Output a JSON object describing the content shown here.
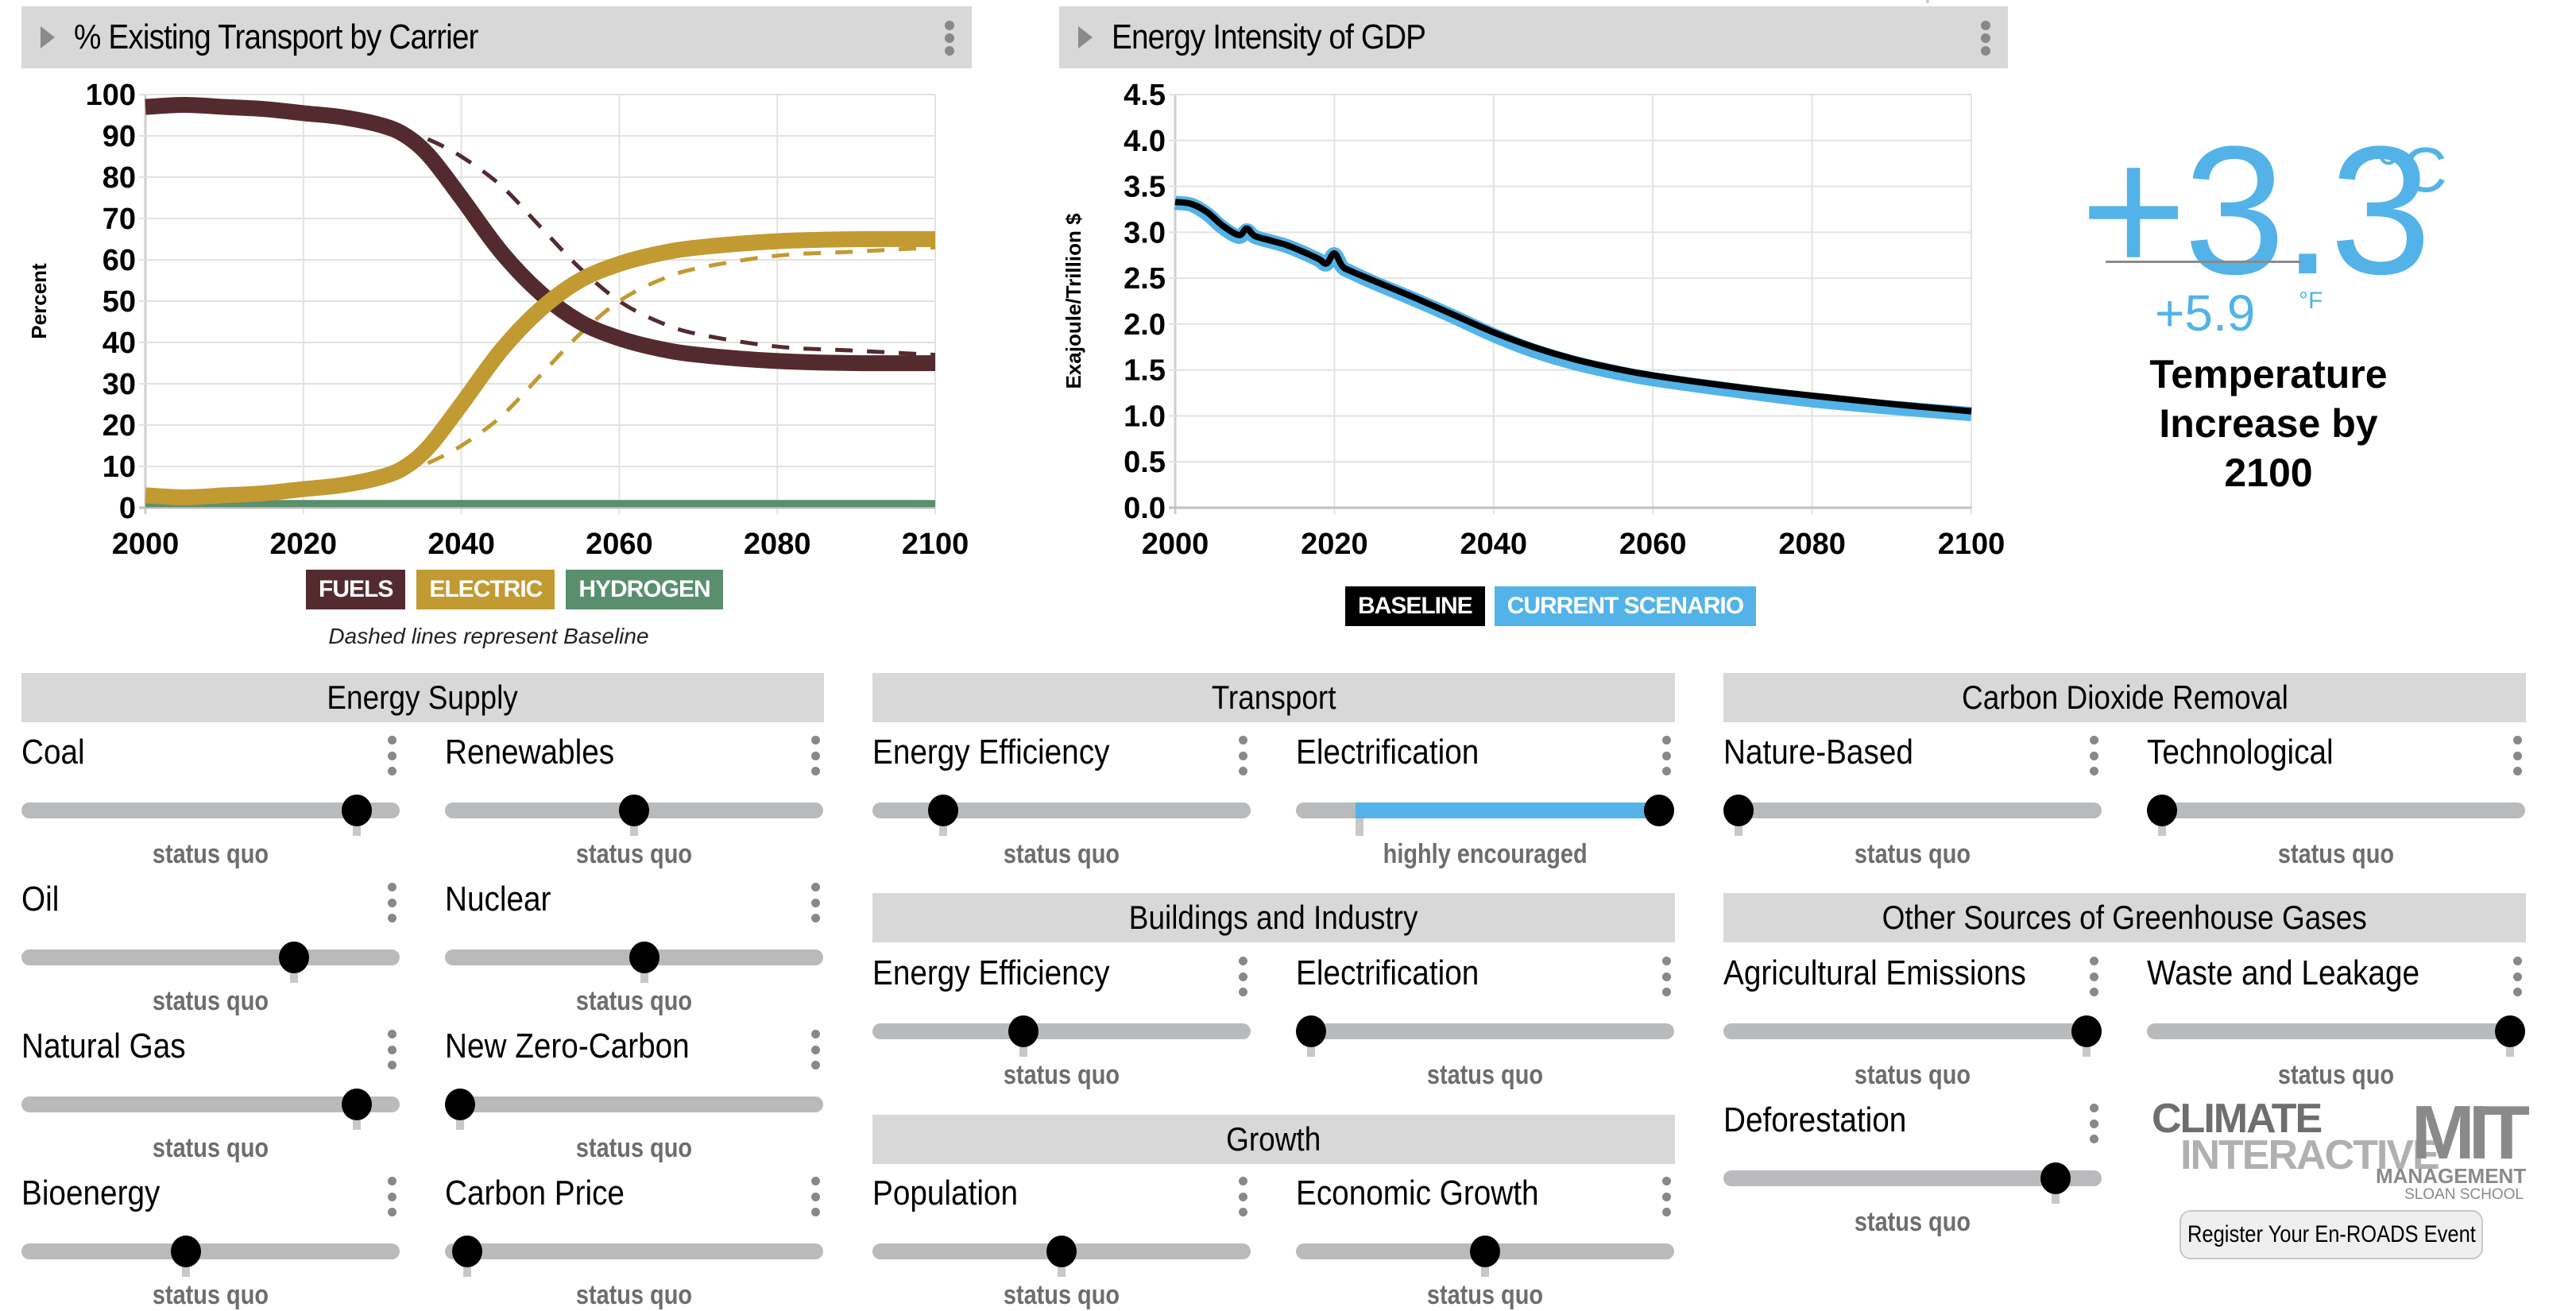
{
  "transport_chart": {
    "title": "% Existing Transport by Carrier",
    "ylabel": "Percent",
    "legend": [
      {
        "label": "FUELS",
        "color": "#532b2e"
      },
      {
        "label": "ELECTRIC",
        "color": "#c19a32"
      },
      {
        "label": "HYDROGEN",
        "color": "#5a8f6e"
      }
    ],
    "caption": "Dashed lines represent Baseline"
  },
  "gdp_chart": {
    "title": "Energy Intensity of GDP",
    "ylabel": "Exajoule/Trillion $",
    "legend": [
      {
        "label": "BASELINE",
        "color": "#000000"
      },
      {
        "label": "CURRENT SCENARIO",
        "color": "#53b3e8"
      }
    ]
  },
  "chart_data": [
    {
      "type": "line",
      "title": "% Existing Transport by Carrier",
      "xlabel": "",
      "ylabel": "Percent",
      "xlim": [
        2000,
        2100
      ],
      "ylim": [
        0,
        100
      ],
      "xticks": [
        2000,
        2020,
        2040,
        2060,
        2080,
        2100
      ],
      "yticks": [
        0,
        10,
        20,
        30,
        40,
        50,
        60,
        70,
        80,
        90,
        100
      ],
      "grid": true,
      "legend_position": "bottom",
      "x": [
        2000,
        2005,
        2010,
        2015,
        2020,
        2025,
        2030,
        2033,
        2036,
        2040,
        2045,
        2050,
        2055,
        2060,
        2065,
        2070,
        2080,
        2090,
        2100
      ],
      "series": [
        {
          "name": "FUELS",
          "color": "#532b2e",
          "style": "solid",
          "values": [
            97,
            97.5,
            97,
            96.5,
            95.5,
            94.5,
            92.5,
            90,
            85,
            75,
            62,
            52,
            45,
            41,
            38.5,
            37,
            35.5,
            35,
            35
          ]
        },
        {
          "name": "ELECTRIC",
          "color": "#c19a32",
          "style": "solid",
          "values": [
            3,
            2.5,
            3,
            3.5,
            4.5,
            5.5,
            7.5,
            10,
            15,
            25,
            38,
            48,
            55,
            59,
            61.5,
            63,
            64.5,
            65,
            65
          ]
        },
        {
          "name": "HYDROGEN",
          "color": "#5a8f6e",
          "style": "solid",
          "values": [
            1,
            1,
            1,
            1,
            1,
            1,
            1,
            1,
            1,
            1,
            1,
            1,
            1,
            1,
            1,
            1,
            1,
            1,
            1
          ]
        },
        {
          "name": "FUELS (Baseline)",
          "color": "#532b2e",
          "style": "dashed",
          "values": [
            97,
            97.5,
            97,
            96.5,
            95.5,
            94.5,
            92.5,
            91,
            89,
            85,
            78,
            68,
            58,
            50,
            45,
            42,
            39,
            38,
            37
          ]
        },
        {
          "name": "ELECTRIC (Baseline)",
          "color": "#c19a32",
          "style": "dashed",
          "values": [
            3,
            2.5,
            3,
            3.5,
            4.5,
            5.5,
            7.5,
            9,
            11,
            15,
            22,
            32,
            42,
            50,
            55,
            58,
            61,
            62,
            63
          ]
        }
      ]
    },
    {
      "type": "line",
      "title": "Energy Intensity of GDP",
      "xlabel": "",
      "ylabel": "Exajoule/Trillion $",
      "xlim": [
        2000,
        2100
      ],
      "ylim": [
        0,
        4.5
      ],
      "xticks": [
        2000,
        2020,
        2040,
        2060,
        2080,
        2100
      ],
      "yticks": [
        "0.0",
        "0.5",
        "1.0",
        "1.5",
        "2.0",
        "2.5",
        "3.0",
        "3.5",
        "4.0",
        "4.5"
      ],
      "grid": true,
      "legend_position": "bottom",
      "x": [
        2000,
        2002,
        2004,
        2006,
        2008,
        2009,
        2010,
        2012,
        2014,
        2016,
        2018,
        2019,
        2020,
        2021,
        2022,
        2025,
        2030,
        2035,
        2040,
        2045,
        2050,
        2055,
        2060,
        2070,
        2080,
        2090,
        2100
      ],
      "series": [
        {
          "name": "CURRENT SCENARIO",
          "color": "#53b3e8",
          "values": [
            3.32,
            3.3,
            3.2,
            3.05,
            2.95,
            3.02,
            2.95,
            2.9,
            2.85,
            2.78,
            2.7,
            2.65,
            2.76,
            2.62,
            2.57,
            2.45,
            2.27,
            2.08,
            1.88,
            1.71,
            1.58,
            1.48,
            1.4,
            1.28,
            1.17,
            1.09,
            1.02
          ]
        },
        {
          "name": "BASELINE",
          "color": "#000000",
          "values": [
            3.33,
            3.31,
            3.22,
            3.07,
            2.97,
            3.04,
            2.96,
            2.91,
            2.86,
            2.79,
            2.71,
            2.66,
            2.77,
            2.63,
            2.58,
            2.47,
            2.29,
            2.1,
            1.91,
            1.75,
            1.62,
            1.52,
            1.44,
            1.32,
            1.22,
            1.13,
            1.05
          ]
        }
      ]
    }
  ],
  "temperature": {
    "celsius_value": "+3.3",
    "celsius_unit": "°C",
    "fahrenheit_value": "+5.9",
    "fahrenheit_unit": "°F",
    "label": "Temperature Increase by 2100",
    "label_lines": [
      "Temperature",
      "Increase by",
      "2100"
    ],
    "color": "#53b3e8"
  },
  "sections": {
    "energy_supply": {
      "title": "Energy Supply",
      "sliders": [
        {
          "label": "Coal",
          "value": 0.92,
          "status_quo": 0.92,
          "status": "status quo"
        },
        {
          "label": "Renewables",
          "value": 0.5,
          "status_quo": 0.5,
          "status": "status quo"
        },
        {
          "label": "Oil",
          "value": 0.74,
          "status_quo": 0.74,
          "status": "status quo"
        },
        {
          "label": "Nuclear",
          "value": 0.53,
          "status_quo": 0.53,
          "status": "status quo"
        },
        {
          "label": "Natural Gas",
          "value": 0.92,
          "status_quo": 0.92,
          "status": "status quo"
        },
        {
          "label": "New Zero-Carbon",
          "value": 0.0,
          "status_quo": 0.0,
          "status": "status quo"
        },
        {
          "label": "Bioenergy",
          "value": 0.43,
          "status_quo": 0.43,
          "status": "status quo"
        },
        {
          "label": "Carbon Price",
          "value": 0.02,
          "status_quo": 0.02,
          "status": "status quo"
        }
      ]
    },
    "transport": {
      "title": "Transport",
      "sliders": [
        {
          "label": "Energy Efficiency",
          "value": 0.16,
          "status_quo": 0.16,
          "status": "status quo"
        },
        {
          "label": "Electrification",
          "value": 1.0,
          "status_quo": 0.14,
          "status": "highly encouraged"
        }
      ]
    },
    "buildings_industry": {
      "title": "Buildings and Industry",
      "sliders": [
        {
          "label": "Energy Efficiency",
          "value": 0.39,
          "status_quo": 0.39,
          "status": "status quo"
        },
        {
          "label": "Electrification",
          "value": 0.0,
          "status_quo": 0.0,
          "status": "status quo"
        }
      ]
    },
    "growth": {
      "title": "Growth",
      "sliders": [
        {
          "label": "Population",
          "value": 0.5,
          "status_quo": 0.5,
          "status": "status quo"
        },
        {
          "label": "Economic Growth",
          "value": 0.5,
          "status_quo": 0.5,
          "status": "status quo"
        }
      ]
    },
    "cdr": {
      "title": "Carbon Dioxide Removal",
      "sliders": [
        {
          "label": "Nature-Based",
          "value": 0.0,
          "status_quo": 0.0,
          "status": "status quo"
        },
        {
          "label": "Technological",
          "value": 0.0,
          "status_quo": 0.0,
          "status": "status quo"
        }
      ]
    },
    "other_ghg": {
      "title": "Other Sources of Greenhouse Gases",
      "sliders": [
        {
          "label": "Agricultural Emissions",
          "value": 1.0,
          "status_quo": 1.0,
          "status": "status quo"
        },
        {
          "label": "Waste and Leakage",
          "value": 1.0,
          "status_quo": 1.0,
          "status": "status quo"
        },
        {
          "label": "Deforestation",
          "value": 0.91,
          "status_quo": 0.91,
          "status": "status quo"
        }
      ]
    }
  },
  "logos": {
    "climate_interactive_line1": "CLIMATE",
    "climate_interactive_line2": "INTERACTIVE",
    "mit_main": "MIT",
    "mit_line2": "MANAGEMENT",
    "mit_line3": "SLOAN SCHOOL"
  },
  "register_button": "Register Your En-ROADS Event"
}
